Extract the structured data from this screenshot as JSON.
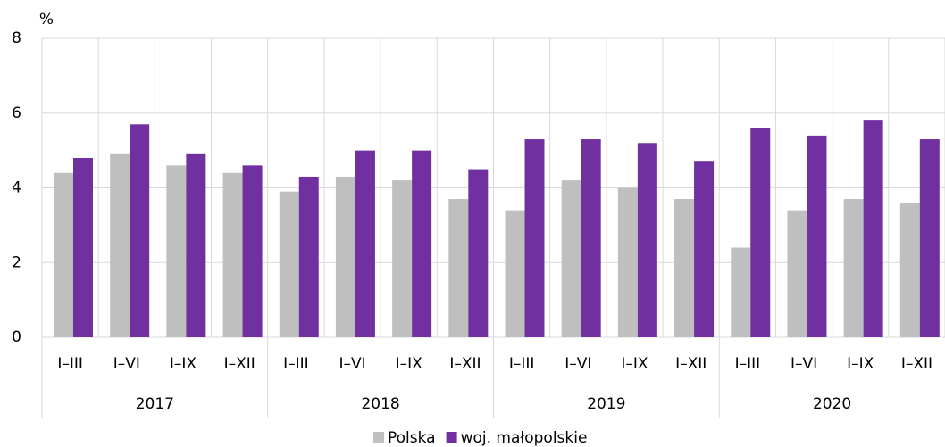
{
  "chart_data": {
    "type": "bar",
    "y_label": "%",
    "categories": [
      "I–III",
      "I–VI",
      "I–IX",
      "I–XII",
      "I–III",
      "I–VI",
      "I–IX",
      "I–XII",
      "I–III",
      "I–VI",
      "I–IX",
      "I–XII",
      "I–III",
      "I–VI",
      "I–IX",
      "I–XII"
    ],
    "groups": [
      "2017",
      "2018",
      "2019",
      "2020"
    ],
    "series": [
      {
        "name": "Polska",
        "color": "#bfbfbf",
        "values": [
          4.4,
          4.9,
          4.6,
          4.4,
          3.9,
          4.3,
          4.2,
          3.7,
          3.4,
          4.2,
          4.0,
          3.7,
          2.4,
          3.4,
          3.7,
          3.6
        ]
      },
      {
        "name": "woj. małopolskie",
        "color": "#7030a0",
        "values": [
          4.8,
          5.7,
          4.9,
          4.6,
          4.3,
          5.0,
          5.0,
          4.5,
          5.3,
          5.3,
          5.2,
          4.7,
          5.6,
          5.4,
          5.8,
          5.3
        ]
      }
    ],
    "ylim": [
      0,
      8
    ],
    "yticks": [
      0,
      2,
      4,
      6,
      8
    ],
    "grid": true,
    "legend": "bottom"
  }
}
